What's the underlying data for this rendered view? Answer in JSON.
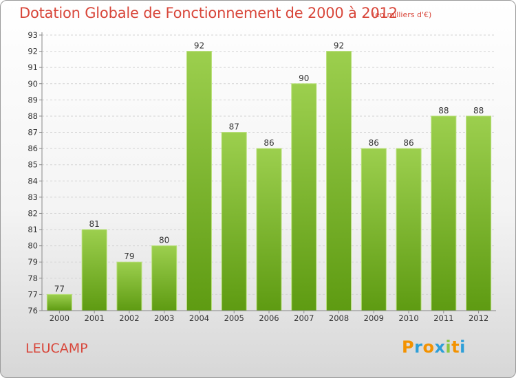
{
  "chart_data": {
    "type": "bar",
    "title": "Dotation Globale de Fonctionnement de 2000 à 2012",
    "unit_note": "(en milliers d'€)",
    "categories": [
      "2000",
      "2001",
      "2002",
      "2003",
      "2004",
      "2005",
      "2006",
      "2007",
      "2008",
      "2009",
      "2010",
      "2011",
      "2012"
    ],
    "values": [
      77,
      81,
      79,
      80,
      92,
      87,
      86,
      90,
      92,
      86,
      86,
      88,
      88
    ],
    "ylim": [
      76,
      93
    ],
    "yticks": [
      76,
      77,
      78,
      79,
      80,
      81,
      82,
      83,
      84,
      85,
      86,
      87,
      88,
      89,
      90,
      91,
      92,
      93
    ],
    "grid": true,
    "bar_color": "#7ab82e"
  },
  "commune": "LEUCAMP",
  "logo": {
    "text": "Proxiti",
    "letters": [
      "P",
      "r",
      "o",
      "x",
      "i",
      "t",
      "i"
    ],
    "colors": [
      "#f39200",
      "#2e9fd8",
      "#f39200",
      "#2e9fd8",
      "#8cc63f",
      "#f39200",
      "#2e9fd8"
    ]
  }
}
